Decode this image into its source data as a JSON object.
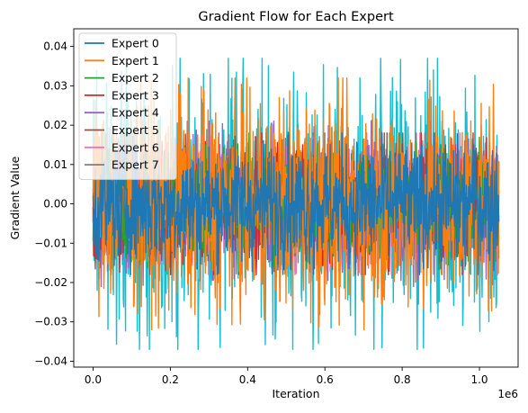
{
  "chart_data": {
    "type": "line",
    "title": "Gradient Flow for Each Expert",
    "xlabel": "Iteration",
    "ylabel": "Gradient Value",
    "x_offset_label": "1e6",
    "xlim": [
      -0.05,
      1.1
    ],
    "ylim": [
      -0.0415,
      0.0445
    ],
    "x_ticks": [
      0.0,
      0.2,
      0.4,
      0.6,
      0.8,
      1.0
    ],
    "x_tick_labels": [
      "0.0",
      "0.2",
      "0.4",
      "0.6",
      "0.8",
      "1.0"
    ],
    "y_ticks": [
      -0.04,
      -0.03,
      -0.02,
      -0.01,
      0.0,
      0.01,
      0.02,
      0.03,
      0.04
    ],
    "y_tick_labels": [
      "−0.04",
      "−0.03",
      "−0.02",
      "−0.01",
      "0.00",
      "0.01",
      "0.02",
      "0.03",
      "0.04"
    ],
    "x_data_range": [
      0.0,
      1.05
    ],
    "legend_position": "top-left",
    "grid": false,
    "series": [
      {
        "name": "Expert 0",
        "color": "#1f77b4",
        "amplitude": 0.018
      },
      {
        "name": "Expert 1",
        "color": "#ff7f0e",
        "amplitude": 0.032
      },
      {
        "name": "Expert 2",
        "color": "#2ca02c",
        "amplitude": 0.018
      },
      {
        "name": "Expert 3",
        "color": "#d62728",
        "amplitude": 0.018
      },
      {
        "name": "Expert 4",
        "color": "#9467bd",
        "amplitude": 0.021
      },
      {
        "name": "Expert 5",
        "color": "#8c564b",
        "amplitude": 0.018
      },
      {
        "name": "Expert 6",
        "color": "#e377c2",
        "amplitude": 0.018
      },
      {
        "name": "Expert 7",
        "color": "#7f7f7f",
        "amplitude": 0.018
      },
      {
        "name": "",
        "color": "#17becf",
        "amplitude": 0.037
      }
    ]
  }
}
